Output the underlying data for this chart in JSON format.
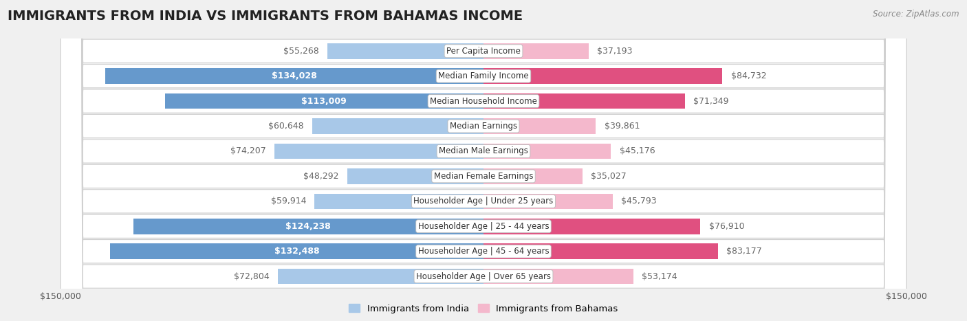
{
  "title": "IMMIGRANTS FROM INDIA VS IMMIGRANTS FROM BAHAMAS INCOME",
  "source": "Source: ZipAtlas.com",
  "categories": [
    "Per Capita Income",
    "Median Family Income",
    "Median Household Income",
    "Median Earnings",
    "Median Male Earnings",
    "Median Female Earnings",
    "Householder Age | Under 25 years",
    "Householder Age | 25 - 44 years",
    "Householder Age | 45 - 64 years",
    "Householder Age | Over 65 years"
  ],
  "india_values": [
    55268,
    134028,
    113009,
    60648,
    74207,
    48292,
    59914,
    124238,
    132488,
    72804
  ],
  "bahamas_values": [
    37193,
    84732,
    71349,
    39861,
    45176,
    35027,
    45793,
    76910,
    83177,
    53174
  ],
  "india_labels": [
    "$55,268",
    "$134,028",
    "$113,009",
    "$60,648",
    "$74,207",
    "$48,292",
    "$59,914",
    "$124,238",
    "$132,488",
    "$72,804"
  ],
  "bahamas_labels": [
    "$37,193",
    "$84,732",
    "$71,349",
    "$39,861",
    "$45,176",
    "$35,027",
    "$45,793",
    "$76,910",
    "$83,177",
    "$53,174"
  ],
  "india_color_light": "#a8c8e8",
  "india_color_dark": "#6699cc",
  "bahamas_color_light": "#f4b8cc",
  "bahamas_color_dark": "#e05080",
  "india_label_inside_color": "#ffffff",
  "india_label_outside_color": "#666666",
  "bahamas_label_outside_color": "#666666",
  "max_value": 150000,
  "legend_india": "Immigrants from India",
  "legend_bahamas": "Immigrants from Bahamas",
  "bg_color": "#f0f0f0",
  "row_bg_color": "#ffffff",
  "row_border_color": "#d0d0d0",
  "title_fontsize": 14,
  "label_fontsize": 9,
  "cat_fontsize": 8.5,
  "bar_height": 0.62,
  "india_inside_threshold": 85000,
  "bahamas_dark_threshold": 65000
}
